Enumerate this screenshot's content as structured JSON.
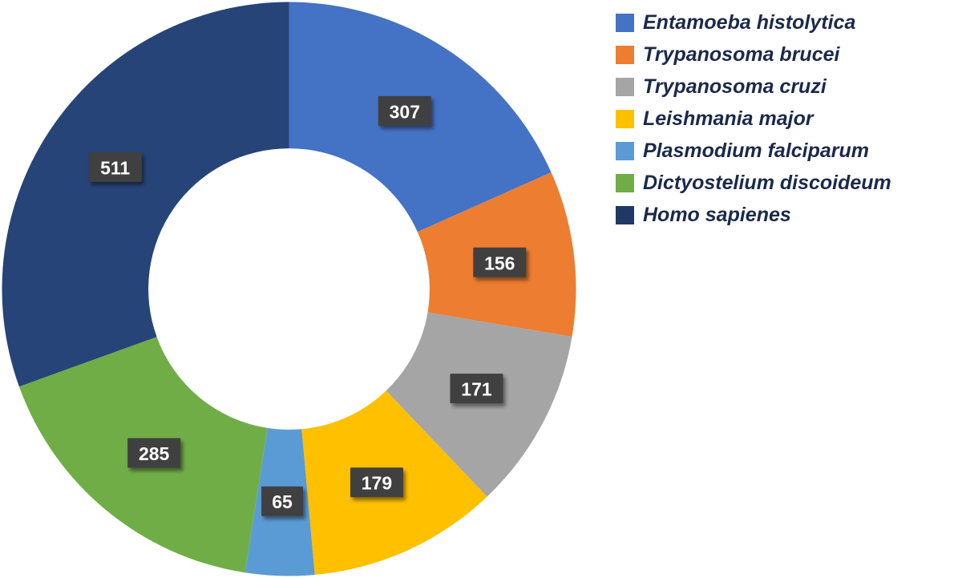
{
  "chart_data": {
    "type": "pie",
    "subtype": "donut",
    "title": "",
    "categories": [
      "Entamoeba histolytica",
      "Trypanosoma brucei",
      "Trypanosoma cruzi",
      "Leishmania major",
      "Plasmodium falciparum",
      "Dictyostelium discoideum",
      "Homo sapienes"
    ],
    "values": [
      307,
      156,
      171,
      179,
      65,
      285,
      511
    ],
    "total": 1674,
    "colors": [
      "#4472C4",
      "#ED7D31",
      "#A5A5A5",
      "#FFC000",
      "#5B9BD5",
      "#70AD47",
      "#264478"
    ],
    "legend_colors": [
      "#4472C4",
      "#ED7D31",
      "#A5A5A5",
      "#FFC000",
      "#5B9BD5",
      "#70AD47",
      "#1F3864"
    ],
    "legend_position": "right",
    "legend_text_color": "#1B2A4A",
    "start_angle_deg": 0,
    "direction": "clockwise",
    "inner_radius_ratio": 0.49,
    "data_label_color": "#FFFFFF",
    "data_label_bg": "#3F3F3F",
    "background": "#FFFFFF"
  }
}
